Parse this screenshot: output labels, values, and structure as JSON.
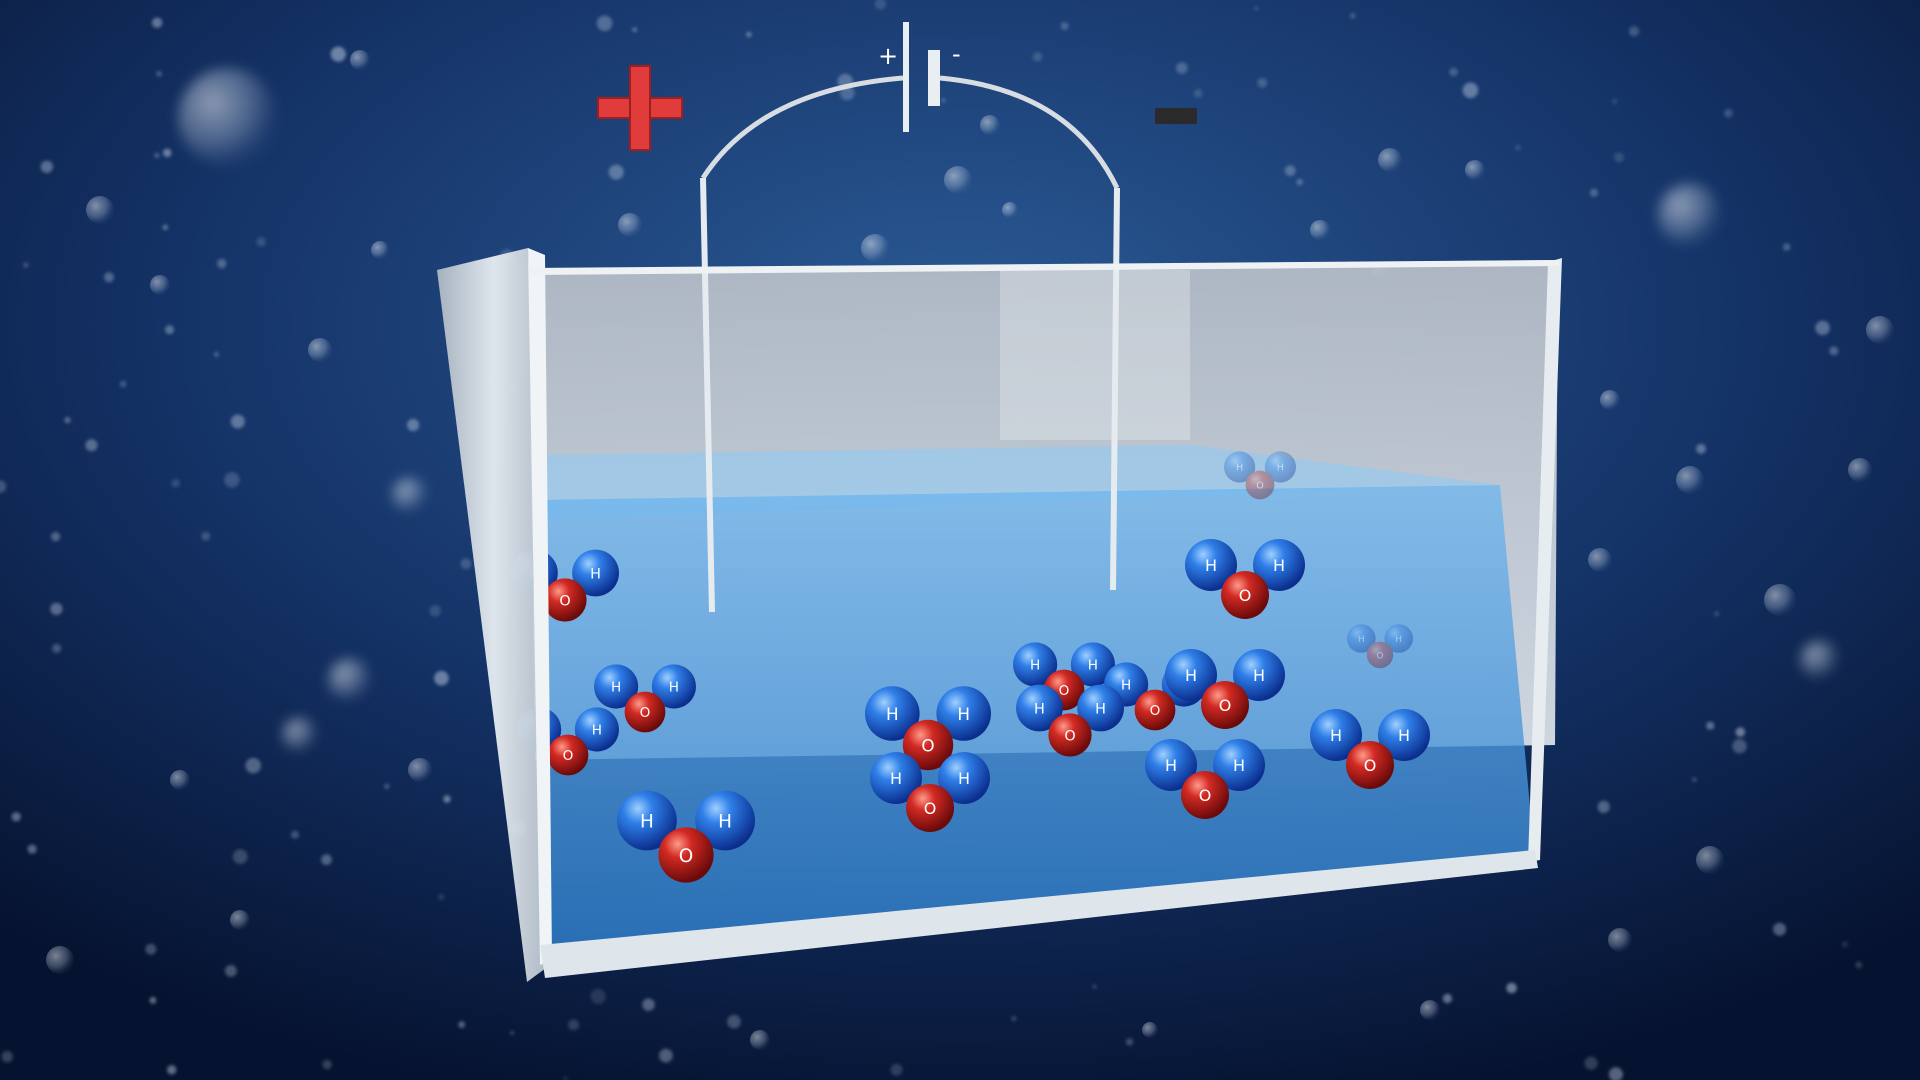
{
  "battery": {
    "plus_label": "+",
    "minus_label": "-"
  },
  "molecule_labels": {
    "hydrogen": "H",
    "oxygen": "O"
  },
  "colors": {
    "background_center": "#2b5a95",
    "background_edge": "#061330",
    "water": "#3e92d6",
    "glass_frame": "#cfd6de",
    "hydrogen": "#1d63d8",
    "oxygen": "#c11f1f",
    "plus_sign": "#e23b3b",
    "minus_sign": "#2a2a2a",
    "wire": "#d7dde3"
  },
  "icons": [
    "plus-sign-icon",
    "minus-sign-icon",
    "battery-icon",
    "water-molecule-icon"
  ]
}
